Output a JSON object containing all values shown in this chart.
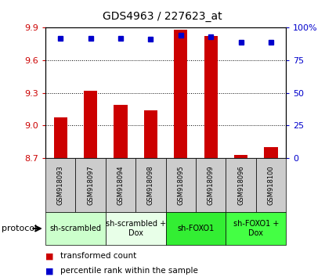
{
  "title": "GDS4963 / 227623_at",
  "samples": [
    "GSM918093",
    "GSM918097",
    "GSM918094",
    "GSM918098",
    "GSM918095",
    "GSM918099",
    "GSM918096",
    "GSM918100"
  ],
  "transformed_count": [
    9.07,
    9.32,
    9.19,
    9.14,
    9.88,
    9.82,
    8.73,
    8.8
  ],
  "percentile_rank": [
    92,
    92,
    92,
    91,
    94,
    93,
    89,
    89
  ],
  "ylim_left": [
    8.7,
    9.9
  ],
  "yticks_left": [
    8.7,
    9.0,
    9.3,
    9.6,
    9.9
  ],
  "yticks_right": [
    0,
    25,
    50,
    75,
    100
  ],
  "ylim_right": [
    0,
    100
  ],
  "bar_color": "#cc0000",
  "dot_color": "#0000cc",
  "groups": [
    {
      "label": "sh-scrambled",
      "start": 0,
      "end": 2,
      "color": "#ccffcc"
    },
    {
      "label": "sh-scrambled +\nDox",
      "start": 2,
      "end": 4,
      "color": "#e8ffe8"
    },
    {
      "label": "sh-FOXO1",
      "start": 4,
      "end": 6,
      "color": "#33ee33"
    },
    {
      "label": "sh-FOXO1 +\nDox",
      "start": 6,
      "end": 8,
      "color": "#44ff44"
    }
  ],
  "protocol_label": "protocol",
  "legend_bar_label": "transformed count",
  "legend_dot_label": "percentile rank within the sample",
  "bar_bottom": 8.7,
  "sample_bg": "#cccccc",
  "title_fontsize": 10,
  "tick_fontsize": 8,
  "sample_fontsize": 6,
  "group_fontsize": 7,
  "legend_fontsize": 7.5
}
